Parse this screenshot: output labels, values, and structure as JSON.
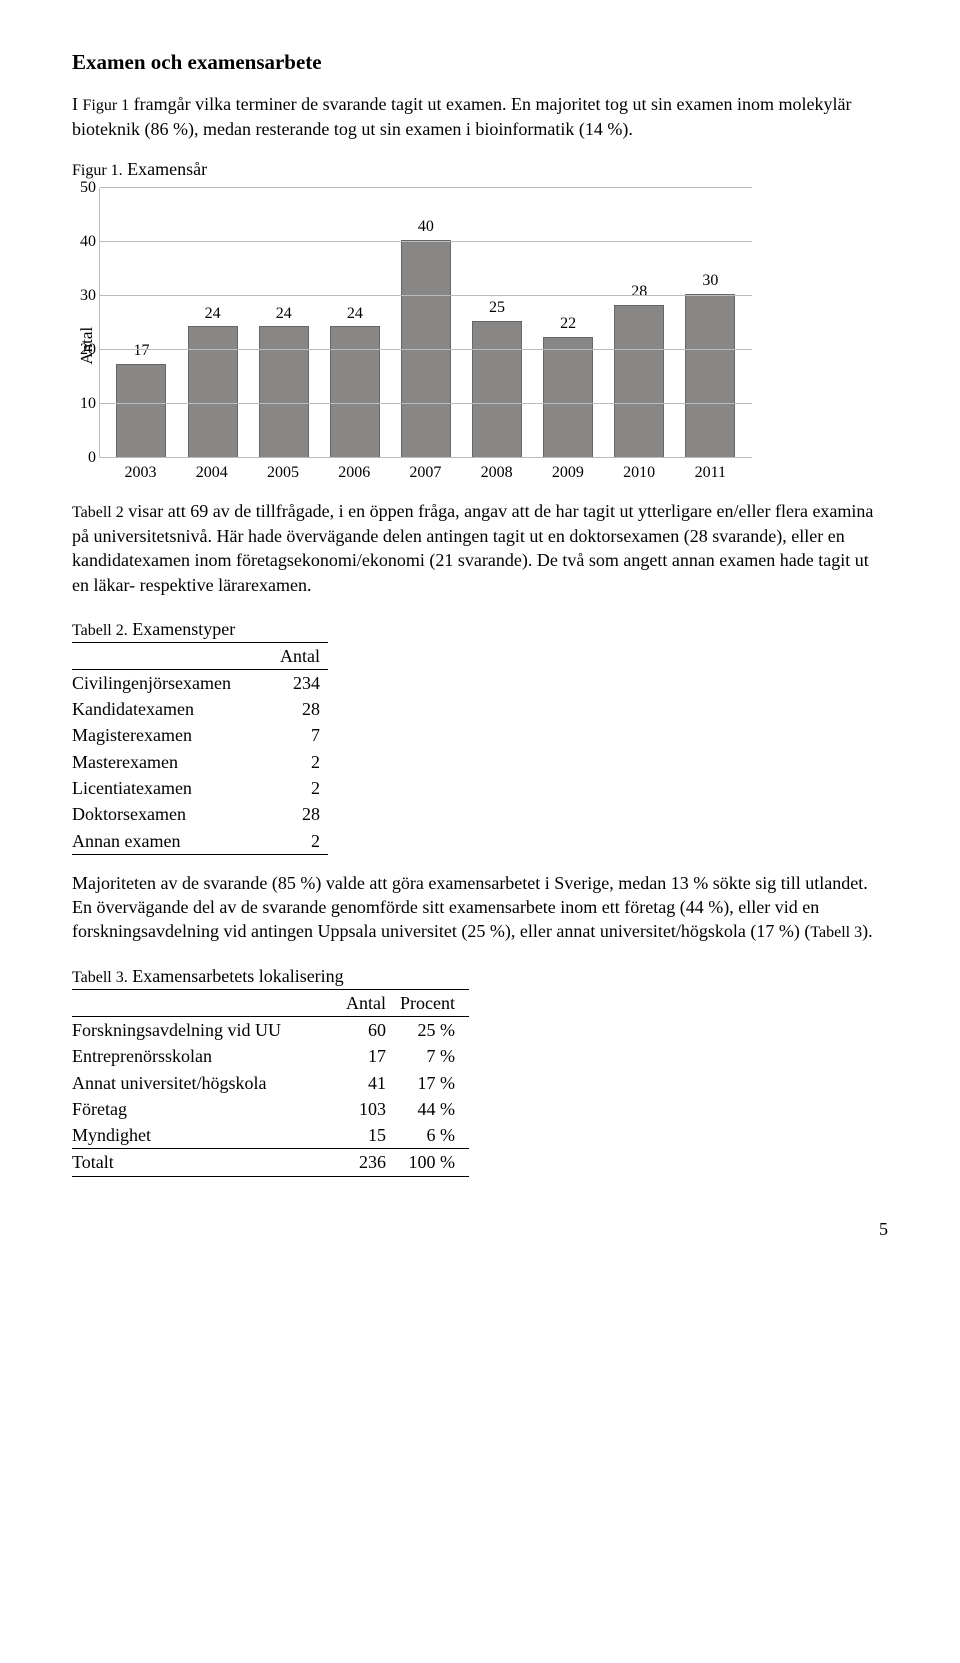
{
  "heading": "Examen och examensarbete",
  "para1_prefix": "I ",
  "para1_figref": "Figur 1",
  "para1_rest": " framgår vilka terminer de svarande tagit ut examen. En majoritet tog ut sin examen inom molekylär bioteknik (86 %), medan resterande tog ut sin examen i bioinformatik (14 %).",
  "figcaption_ref": "Figur 1.",
  "figcaption_rest": " Examensår",
  "chart": {
    "ylabel": "Antal",
    "ymax": 50,
    "ytick_step": 10,
    "yticks": [
      0,
      10,
      20,
      30,
      40,
      50
    ],
    "bar_color": "#888785",
    "grid_color": "#bbbbbb",
    "categories": [
      "2003",
      "2004",
      "2005",
      "2006",
      "2007",
      "2008",
      "2009",
      "2010",
      "2011"
    ],
    "values": [
      17,
      24,
      24,
      24,
      40,
      25,
      22,
      28,
      30
    ]
  },
  "para2_prefix": "",
  "para2_tblref": "Tabell 2",
  "para2_rest": " visar att 69 av de tillfrågade, i en öppen fråga, angav att de har tagit ut ytterligare en/eller flera examina på universitetsnivå. Här hade övervägande delen antingen tagit ut en doktorsexamen (28 svarande), eller en kandidatexamen inom företagsekonomi/ekonomi (21 svarande). De två som angett annan examen hade tagit ut en läkar- respektive lärarexamen.",
  "table2": {
    "caption_ref": "Tabell 2.",
    "caption_rest": " Examenstyper",
    "col_header": "Antal",
    "rows": [
      {
        "label": "Civilingenjörsexamen",
        "val": "234"
      },
      {
        "label": "Kandidatexamen",
        "val": "28"
      },
      {
        "label": "Magisterexamen",
        "val": "7"
      },
      {
        "label": "Masterexamen",
        "val": "2"
      },
      {
        "label": "Licentiatexamen",
        "val": "2"
      },
      {
        "label": "Doktorsexamen",
        "val": "28"
      },
      {
        "label": "Annan examen",
        "val": "2"
      }
    ]
  },
  "para3": "Majoriteten av de svarande (85 %) valde att göra examensarbetet i Sverige, medan 13 % sökte sig till utlandet. En övervägande del av de svarande genomförde sitt examensarbete inom ett företag (44 %), eller vid en forskningsavdelning vid antingen Uppsala universitet (25 %), eller annat universitet/högskola (17 %) (",
  "para3_tblref": "Tabell 3",
  "para3_end": ").",
  "table3": {
    "caption_ref": "Tabell 3.",
    "caption_rest": " Examensarbetets lokalisering",
    "col1": "Antal",
    "col2": "Procent",
    "rows": [
      {
        "label": "Forskningsavdelning vid UU",
        "antal": "60",
        "procent": "25 %"
      },
      {
        "label": "Entreprenörsskolan",
        "antal": "17",
        "procent": "7 %"
      },
      {
        "label": "Annat universitet/högskola",
        "antal": "41",
        "procent": "17 %"
      },
      {
        "label": "Företag",
        "antal": "103",
        "procent": "44 %"
      },
      {
        "label": "Myndighet",
        "antal": "15",
        "procent": "6 %"
      }
    ],
    "total": {
      "label": "Totalt",
      "antal": "236",
      "procent": "100 %"
    }
  },
  "pagenum": "5"
}
